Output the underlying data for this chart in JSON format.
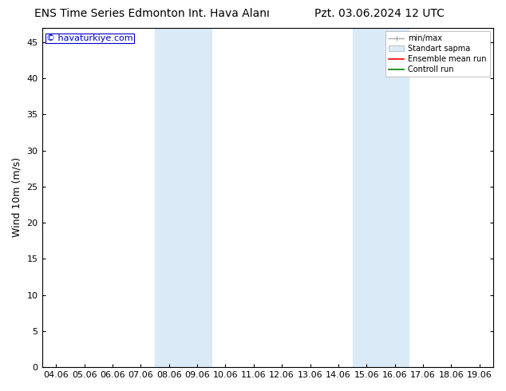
{
  "title_left": "ENS Time Series Edmonton Int. Hava Alanı",
  "title_right": "Pzt. 03.06.2024 12 UTC",
  "ylabel": "Wind 10m (m/s)",
  "watermark": "© havaturkiye.com",
  "x_ticks": [
    "04.06",
    "05.06",
    "06.06",
    "07.06",
    "08.06",
    "09.06",
    "10.06",
    "11.06",
    "12.06",
    "13.06",
    "14.06",
    "15.06",
    "16.06",
    "17.06",
    "18.06",
    "19.06"
  ],
  "ylim": [
    0,
    47
  ],
  "yticks": [
    0,
    5,
    10,
    15,
    20,
    25,
    30,
    35,
    40,
    45
  ],
  "shaded_bands": [
    {
      "xstart": 4,
      "xend": 6,
      "color": "#daeaf7"
    },
    {
      "xstart": 11,
      "xend": 13,
      "color": "#daeaf7"
    }
  ],
  "background_color": "#ffffff",
  "plot_bg_color": "#ffffff",
  "legend_labels": [
    "min/max",
    "Standart sapma",
    "Ensemble mean run",
    "Controll run"
  ],
  "title_fontsize": 10,
  "tick_fontsize": 8,
  "ylabel_fontsize": 9,
  "watermark_color": "#0000cc",
  "watermark_fontsize": 8
}
